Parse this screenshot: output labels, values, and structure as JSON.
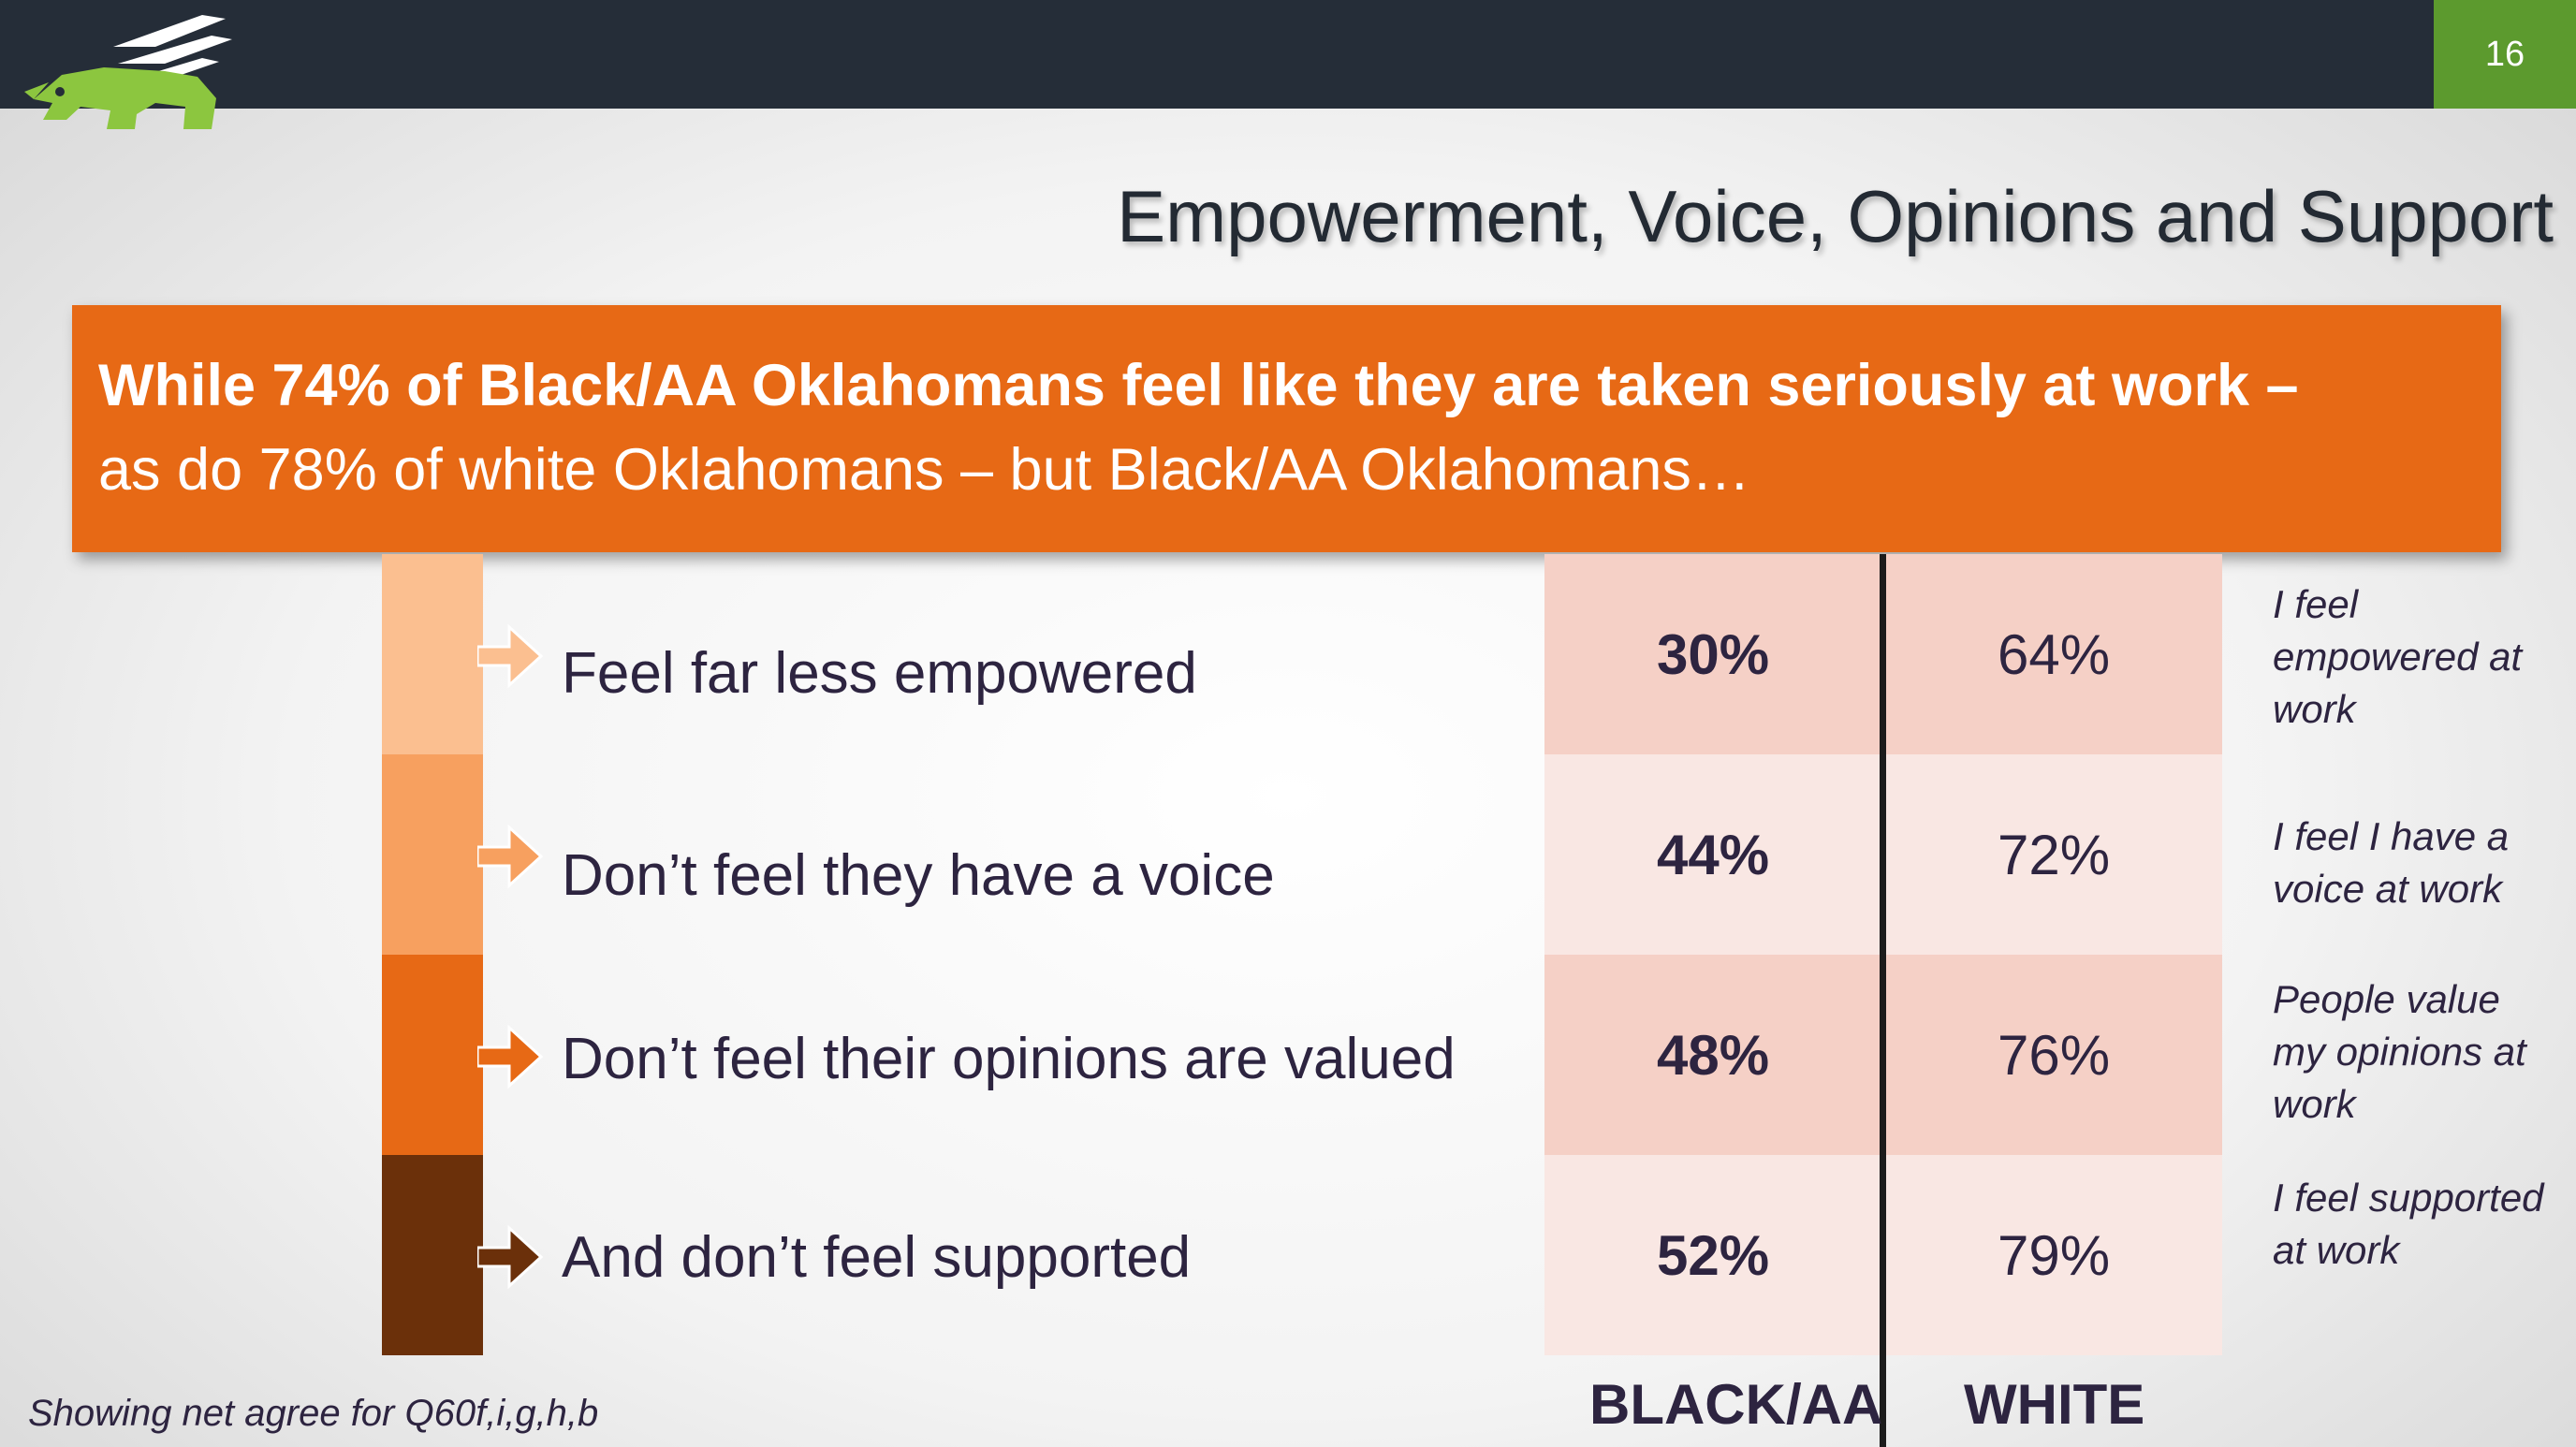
{
  "header": {
    "slide_number": "16",
    "logo": "griffin-logo"
  },
  "title": "Empowerment, Voice, Opinions and Support",
  "banner": {
    "line1": "While 74% of Black/AA Oklahomans feel like they are taken seriously at work –",
    "line2": "as do 78% of white Oklahomans – but Black/AA Oklahomans…"
  },
  "colors": {
    "accent": "#e76915",
    "bar": [
      "#fbbf90",
      "#f7a05f",
      "#e76915",
      "#6b300a"
    ]
  },
  "rows": [
    {
      "label": "Feel far less empowered",
      "black": "30%",
      "white": "64%",
      "note": "I feel empowered at work"
    },
    {
      "label": "Don’t feel they have a voice",
      "black": "44%",
      "white": "72%",
      "note": "I feel I have a voice at work"
    },
    {
      "label": "Don’t feel their opinions are valued",
      "black": "48%",
      "white": "76%",
      "note": "People value my opinions at work"
    },
    {
      "label": "And don’t feel supported",
      "black": "52%",
      "white": "79%",
      "note": "I feel supported at work"
    }
  ],
  "columns": {
    "black": "BLACK/AA",
    "white": "WHITE"
  },
  "footnote": "Showing net agree for Q60f,i,g,h,b"
}
